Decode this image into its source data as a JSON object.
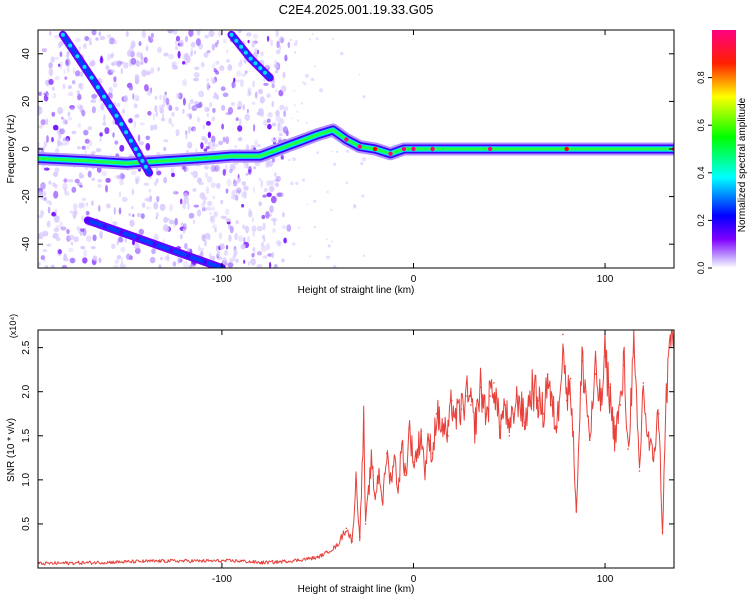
{
  "title": "C2E4.2025.001.19.33.G05",
  "chart_data": [
    {
      "type": "heatmap",
      "xlabel": "Height of straight line (km)",
      "ylabel": "Frequency (Hz)",
      "xlim": [
        -196,
        136
      ],
      "ylim": [
        -50,
        50
      ],
      "xticks": [
        -100,
        0,
        100
      ],
      "xtick_labels": [
        "-100",
        "0",
        "100"
      ],
      "yticks": [
        -40,
        -20,
        0,
        20,
        40
      ],
      "ytick_labels": [
        "-40",
        "-20",
        "0",
        "20",
        "40"
      ],
      "colorbar": {
        "label": "Normalized spectral amplitude",
        "range": [
          0,
          1
        ],
        "ticks": [
          0.0,
          0.2,
          0.4,
          0.6,
          0.8
        ],
        "tick_labels": [
          "0.0",
          "0.2",
          "0.4",
          "0.6",
          "0.8"
        ],
        "colors": [
          "#ffffff",
          "#8000ff",
          "#0000ff",
          "#00ffff",
          "#00ff00",
          "#ffff00",
          "#ff0000",
          "#ff0080"
        ]
      },
      "features": {
        "main_trace": [
          [
            -196,
            -4
          ],
          [
            -170,
            -5
          ],
          [
            -150,
            -6
          ],
          [
            -130,
            -5
          ],
          [
            -110,
            -4
          ],
          [
            -95,
            -3
          ],
          [
            -80,
            -3
          ],
          [
            -70,
            0
          ],
          [
            -60,
            3
          ],
          [
            -50,
            6
          ],
          [
            -42,
            8
          ],
          [
            -35,
            4
          ],
          [
            -28,
            1
          ],
          [
            -20,
            0
          ],
          [
            -12,
            -2
          ],
          [
            -5,
            0
          ],
          [
            0,
            0
          ],
          [
            10,
            0
          ],
          [
            40,
            0
          ],
          [
            80,
            0
          ],
          [
            136,
            0
          ]
        ],
        "diagonal_traces": [
          [
            [
              -183,
              48
            ],
            [
              -168,
              30
            ],
            [
              -155,
              14
            ],
            [
              -145,
              0
            ],
            [
              -138,
              -10
            ]
          ],
          [
            [
              -95,
              48
            ],
            [
              -85,
              38
            ],
            [
              -75,
              30
            ]
          ],
          [
            [
              -170,
              -30
            ],
            [
              -135,
              -40
            ],
            [
              -100,
              -50
            ]
          ]
        ],
        "noise_region_x": [
          -196,
          -65
        ]
      }
    },
    {
      "type": "line",
      "xlabel": "Height of straight line (km)",
      "ylabel": "SNR (10 * v/v)",
      "yscale_label": "(x10⁴)",
      "xlim": [
        -196,
        136
      ],
      "ylim": [
        0,
        2.7
      ],
      "xticks": [
        -100,
        0,
        100
      ],
      "xtick_labels": [
        "-100",
        "0",
        "100"
      ],
      "yticks": [
        0.5,
        1.0,
        1.5,
        2.0,
        2.5
      ],
      "ytick_labels": [
        "0.5",
        "1.0",
        "1.5",
        "2.0",
        "2.5"
      ],
      "color": "#e8403a",
      "series": [
        {
          "x": [
            -196,
            -170,
            -150,
            -130,
            -110,
            -90,
            -80,
            -70,
            -60,
            -50,
            -45,
            -40,
            -35,
            -32,
            -30,
            -28,
            -26,
            -25,
            -22,
            -20,
            -18,
            -16,
            -14,
            -12,
            -10,
            -8,
            -6,
            -4,
            -2,
            0,
            2,
            4,
            6,
            8,
            10,
            12,
            15,
            18,
            20,
            22,
            25,
            28,
            30,
            32,
            35,
            38,
            40,
            42,
            45,
            48,
            50,
            52,
            55,
            58,
            60,
            62,
            65,
            68,
            70,
            72,
            75,
            78,
            80,
            82,
            85,
            88,
            90,
            92,
            95,
            98,
            100,
            102,
            105,
            108,
            110,
            112,
            115,
            118,
            120,
            122,
            125,
            128,
            130,
            132,
            134,
            136
          ],
          "y": [
            0.05,
            0.06,
            0.07,
            0.08,
            0.08,
            0.08,
            0.06,
            0.07,
            0.09,
            0.12,
            0.18,
            0.25,
            0.45,
            0.3,
            1.0,
            0.35,
            1.65,
            0.5,
            1.2,
            0.8,
            1.1,
            0.75,
            1.3,
            1.0,
            1.25,
            0.9,
            1.4,
            1.05,
            1.6,
            1.2,
            1.3,
            1.55,
            1.1,
            1.45,
            1.3,
            1.75,
            1.6,
            1.5,
            1.9,
            1.7,
            1.8,
            1.95,
            1.85,
            1.6,
            2.05,
            1.75,
            1.95,
            2.1,
            1.6,
            1.85,
            1.5,
            1.75,
            1.95,
            1.65,
            1.85,
            2.05,
            1.9,
            1.75,
            2.2,
            1.85,
            1.6,
            2.65,
            1.9,
            2.15,
            0.65,
            2.35,
            2.0,
            1.45,
            2.2,
            1.85,
            2.4,
            2.05,
            1.5,
            1.85,
            2.3,
            1.35,
            2.45,
            1.1,
            2.1,
            1.5,
            1.25,
            1.75,
            0.4,
            1.95,
            2.6,
            2.7
          ]
        }
      ]
    }
  ]
}
